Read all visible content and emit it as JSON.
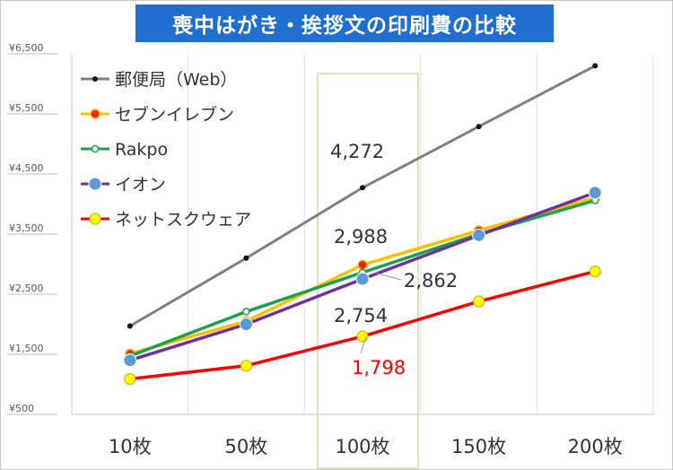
{
  "chart_data": {
    "type": "line",
    "title": "喪中はがき・挨拶文の印刷費の比較",
    "categories": [
      "10枚",
      "50枚",
      "100枚",
      "150枚",
      "200枚"
    ],
    "ylim": [
      500,
      6500
    ],
    "yticks": [
      500,
      1500,
      2500,
      3500,
      4500,
      5500,
      6500
    ],
    "ytick_labels": [
      "¥500",
      "¥1,500",
      "¥2,500",
      "¥3,500",
      "¥4,500",
      "¥5,500",
      "¥6,500"
    ],
    "xlabel": "",
    "ylabel": "",
    "grid": "vertical",
    "legend_position": "top-left",
    "highlight_category": "100枚",
    "series": [
      {
        "name": "郵便局（Web）",
        "color": "#808080",
        "marker": "dot-black",
        "values": [
          1970,
          3100,
          4272,
          5290,
          6300
        ]
      },
      {
        "name": "セブンイレブン",
        "color": "#ffc000",
        "marker": "circle-red",
        "values": [
          1510,
          2050,
          2988,
          3560,
          4110
        ]
      },
      {
        "name": "Rakpo",
        "color": "#1aa34a",
        "marker": "circle-hollow",
        "values": [
          1470,
          2210,
          2862,
          3500,
          4060
        ]
      },
      {
        "name": "イオン",
        "color": "#7030a0",
        "marker": "circle-blue",
        "values": [
          1400,
          2000,
          2754,
          3480,
          4190
        ]
      },
      {
        "name": "ネットスクウェア",
        "color": "#ff0000",
        "marker": "circle-yellow",
        "values": [
          1090,
          1310,
          1798,
          2380,
          2880
        ]
      }
    ],
    "annotations": [
      {
        "text": "4,272",
        "color": "#333333"
      },
      {
        "text": "2,988",
        "color": "#333333"
      },
      {
        "text": "2,862",
        "color": "#333333"
      },
      {
        "text": "2,754",
        "color": "#333333"
      },
      {
        "text": "1,798",
        "color": "#ff0000"
      }
    ]
  }
}
